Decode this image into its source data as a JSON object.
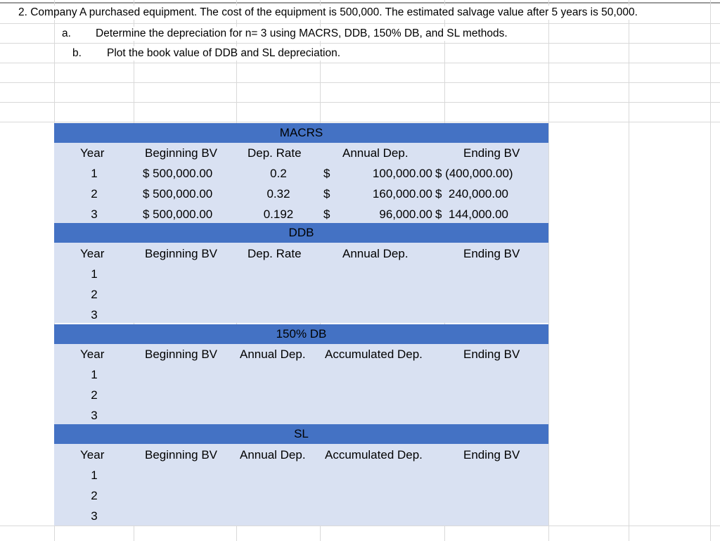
{
  "problem": {
    "title": "2. Company A purchased equipment. The cost of the equipment is 500,000. The estimated salvage value after 5 years is 50,000.",
    "part_a_label": "a.",
    "part_a_text": "Determine the depreciation for n= 3 using MACRS, DDB, 150% DB, and SL methods.",
    "part_b_label": "b.",
    "part_b_text": "Plot the book value of DDB and SL depreciation."
  },
  "macrs": {
    "title": "MACRS",
    "headers": [
      "Year",
      "Beginning BV",
      "Dep. Rate",
      "Annual Dep.",
      "Ending BV"
    ],
    "rows": [
      {
        "year": "1",
        "beg": "$ 500,000.00",
        "rate": "0.2",
        "cur": "$",
        "dep": "100,000.00",
        "end": "$ (400,000.00)"
      },
      {
        "year": "2",
        "beg": "$ 500,000.00",
        "rate": "0.32",
        "cur": "$",
        "dep": "160,000.00",
        "end": "$  240,000.00"
      },
      {
        "year": "3",
        "beg": "$ 500,000.00",
        "rate": "0.192",
        "cur": "$",
        "dep": "96,000.00",
        "end": "$  144,000.00"
      }
    ]
  },
  "ddb": {
    "title": "DDB",
    "headers": [
      "Year",
      "Beginning BV",
      "Dep. Rate",
      "Annual Dep.",
      "Ending BV"
    ],
    "years": [
      "1",
      "2",
      "3"
    ]
  },
  "db150": {
    "title": "150% DB",
    "headers": [
      "Year",
      "Beginning BV",
      "Annual Dep.",
      "Accumulated Dep.",
      "Ending BV"
    ],
    "years": [
      "1",
      "2",
      "3"
    ]
  },
  "sl": {
    "title": "SL",
    "headers": [
      "Year",
      "Beginning BV",
      "Annual Dep.",
      "Accumulated Dep.",
      "Ending BV"
    ],
    "years": [
      "1",
      "2",
      "3"
    ]
  }
}
